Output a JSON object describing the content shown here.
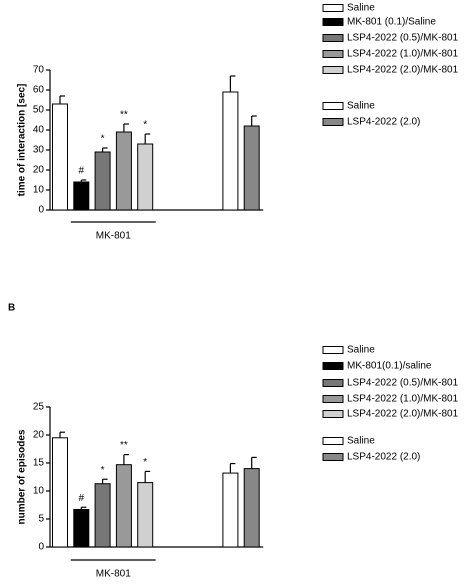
{
  "chart_data": [
    {
      "type": "bar",
      "panel_label": null,
      "ylabel": "time of interaction [sec]",
      "group_label": "MK-801",
      "ylim": [
        0,
        70
      ],
      "yticks": [
        0,
        10,
        20,
        30,
        40,
        50,
        60,
        70
      ],
      "values": [
        53,
        14,
        29,
        39,
        33,
        null,
        null,
        null,
        59,
        42
      ],
      "errors": [
        4,
        1,
        2,
        4,
        5,
        null,
        null,
        null,
        8,
        5
      ],
      "colors": [
        "#ffffff",
        "#000000",
        "#777777",
        "#999999",
        "#d0d0d0",
        null,
        null,
        null,
        "#ffffff",
        "#888888"
      ],
      "annotations": [
        null,
        "#",
        "*",
        "**",
        "*",
        null,
        null,
        null,
        null,
        null
      ],
      "legend": [
        {
          "name": "Saline",
          "color": "#ffffff"
        },
        {
          "name": "MK-801 (0.1)/Saline",
          "color": "#000000"
        },
        {
          "name": "LSP4-2022 (0.5)/MK-801",
          "color": "#777777"
        },
        {
          "name": "LSP4-2022 (1.0)/MK-801",
          "color": "#999999"
        },
        {
          "name": "LSP4-2022 (2.0)/MK-801",
          "color": "#d0d0d0"
        },
        {
          "name": "Saline",
          "color": "#ffffff"
        },
        {
          "name": "LSP4-2022 (2.0)",
          "color": "#888888"
        }
      ]
    },
    {
      "type": "bar",
      "panel_label": "B",
      "ylabel": "number of episodes",
      "group_label": "MK-801",
      "ylim": [
        0,
        25
      ],
      "yticks": [
        0,
        5,
        10,
        15,
        20,
        25
      ],
      "values": [
        19.5,
        6.7,
        11.3,
        14.7,
        11.5,
        null,
        null,
        null,
        13.2,
        14
      ],
      "errors": [
        1,
        0.4,
        0.8,
        1.8,
        2,
        null,
        null,
        null,
        1.7,
        2
      ],
      "colors": [
        "#ffffff",
        "#000000",
        "#777777",
        "#999999",
        "#d0d0d0",
        null,
        null,
        null,
        "#ffffff",
        "#888888"
      ],
      "annotations": [
        null,
        "#",
        "*",
        "**",
        "*",
        null,
        null,
        null,
        null,
        null
      ],
      "legend": [
        {
          "name": "Saline",
          "color": "#ffffff"
        },
        {
          "name": "MK-801(0.1)/saline",
          "color": "#000000"
        },
        {
          "name": "LSP4-2022 (0.5)/MK-801",
          "color": "#777777"
        },
        {
          "name": "LSP4-2022 (1.0)/MK-801",
          "color": "#999999"
        },
        {
          "name": "LSP4-2022 (2.0)/MK-801",
          "color": "#d0d0d0"
        },
        {
          "name": "Saline",
          "color": "#ffffff"
        },
        {
          "name": "LSP4-2022 (2.0)",
          "color": "#888888"
        }
      ]
    }
  ]
}
